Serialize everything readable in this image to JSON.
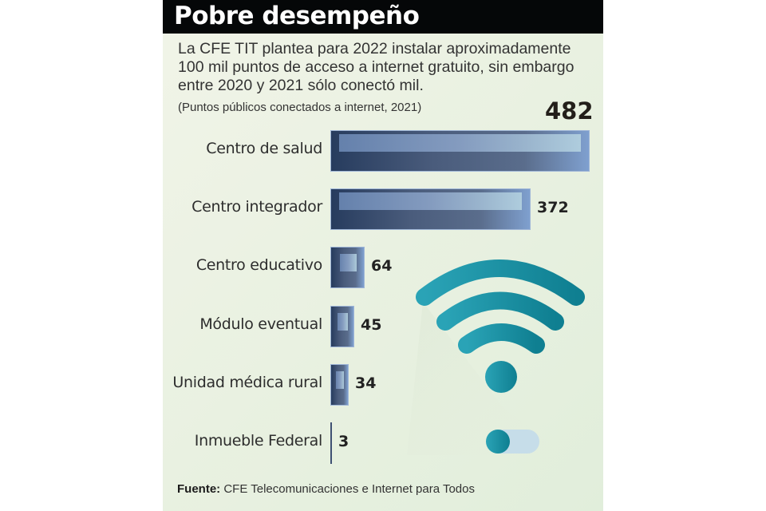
{
  "title": "Pobre desempeño",
  "intro": "La CFE TIT plantea para 2022 instalar aproximadamente 100 mil puntos de acceso a internet gratuito, sin embargo entre 2020  y 2021 sólo conectó mil.",
  "footer": {
    "label": "Fuente:",
    "text": "CFE Telecomunicaciones e Internet para Todos"
  },
  "icons": [
    "wifi-icon",
    "toggle-switch-icon"
  ],
  "colors": {
    "title_bar": "#050708",
    "bar_dark": "#273c5e",
    "bar_light": "#7fa0cf",
    "wifi": "#1a8fa3"
  },
  "chart_data": {
    "type": "bar",
    "orientation": "horizontal",
    "title": "Pobre desempeño",
    "subtitle": "(Puntos públicos conectados a internet, 2021)",
    "xlabel": "",
    "ylabel": "",
    "categories": [
      "Centro de salud",
      "Centro integrador",
      "Centro educativo",
      "Módulo eventual",
      "Unidad médica rural",
      "Inmueble Federal"
    ],
    "values": [
      482,
      372,
      64,
      45,
      34,
      3
    ],
    "value_labels": [
      "482",
      "372",
      "64",
      "45",
      "34",
      "3"
    ],
    "xlim": [
      0,
      482
    ],
    "grid": false,
    "legend": "none"
  }
}
